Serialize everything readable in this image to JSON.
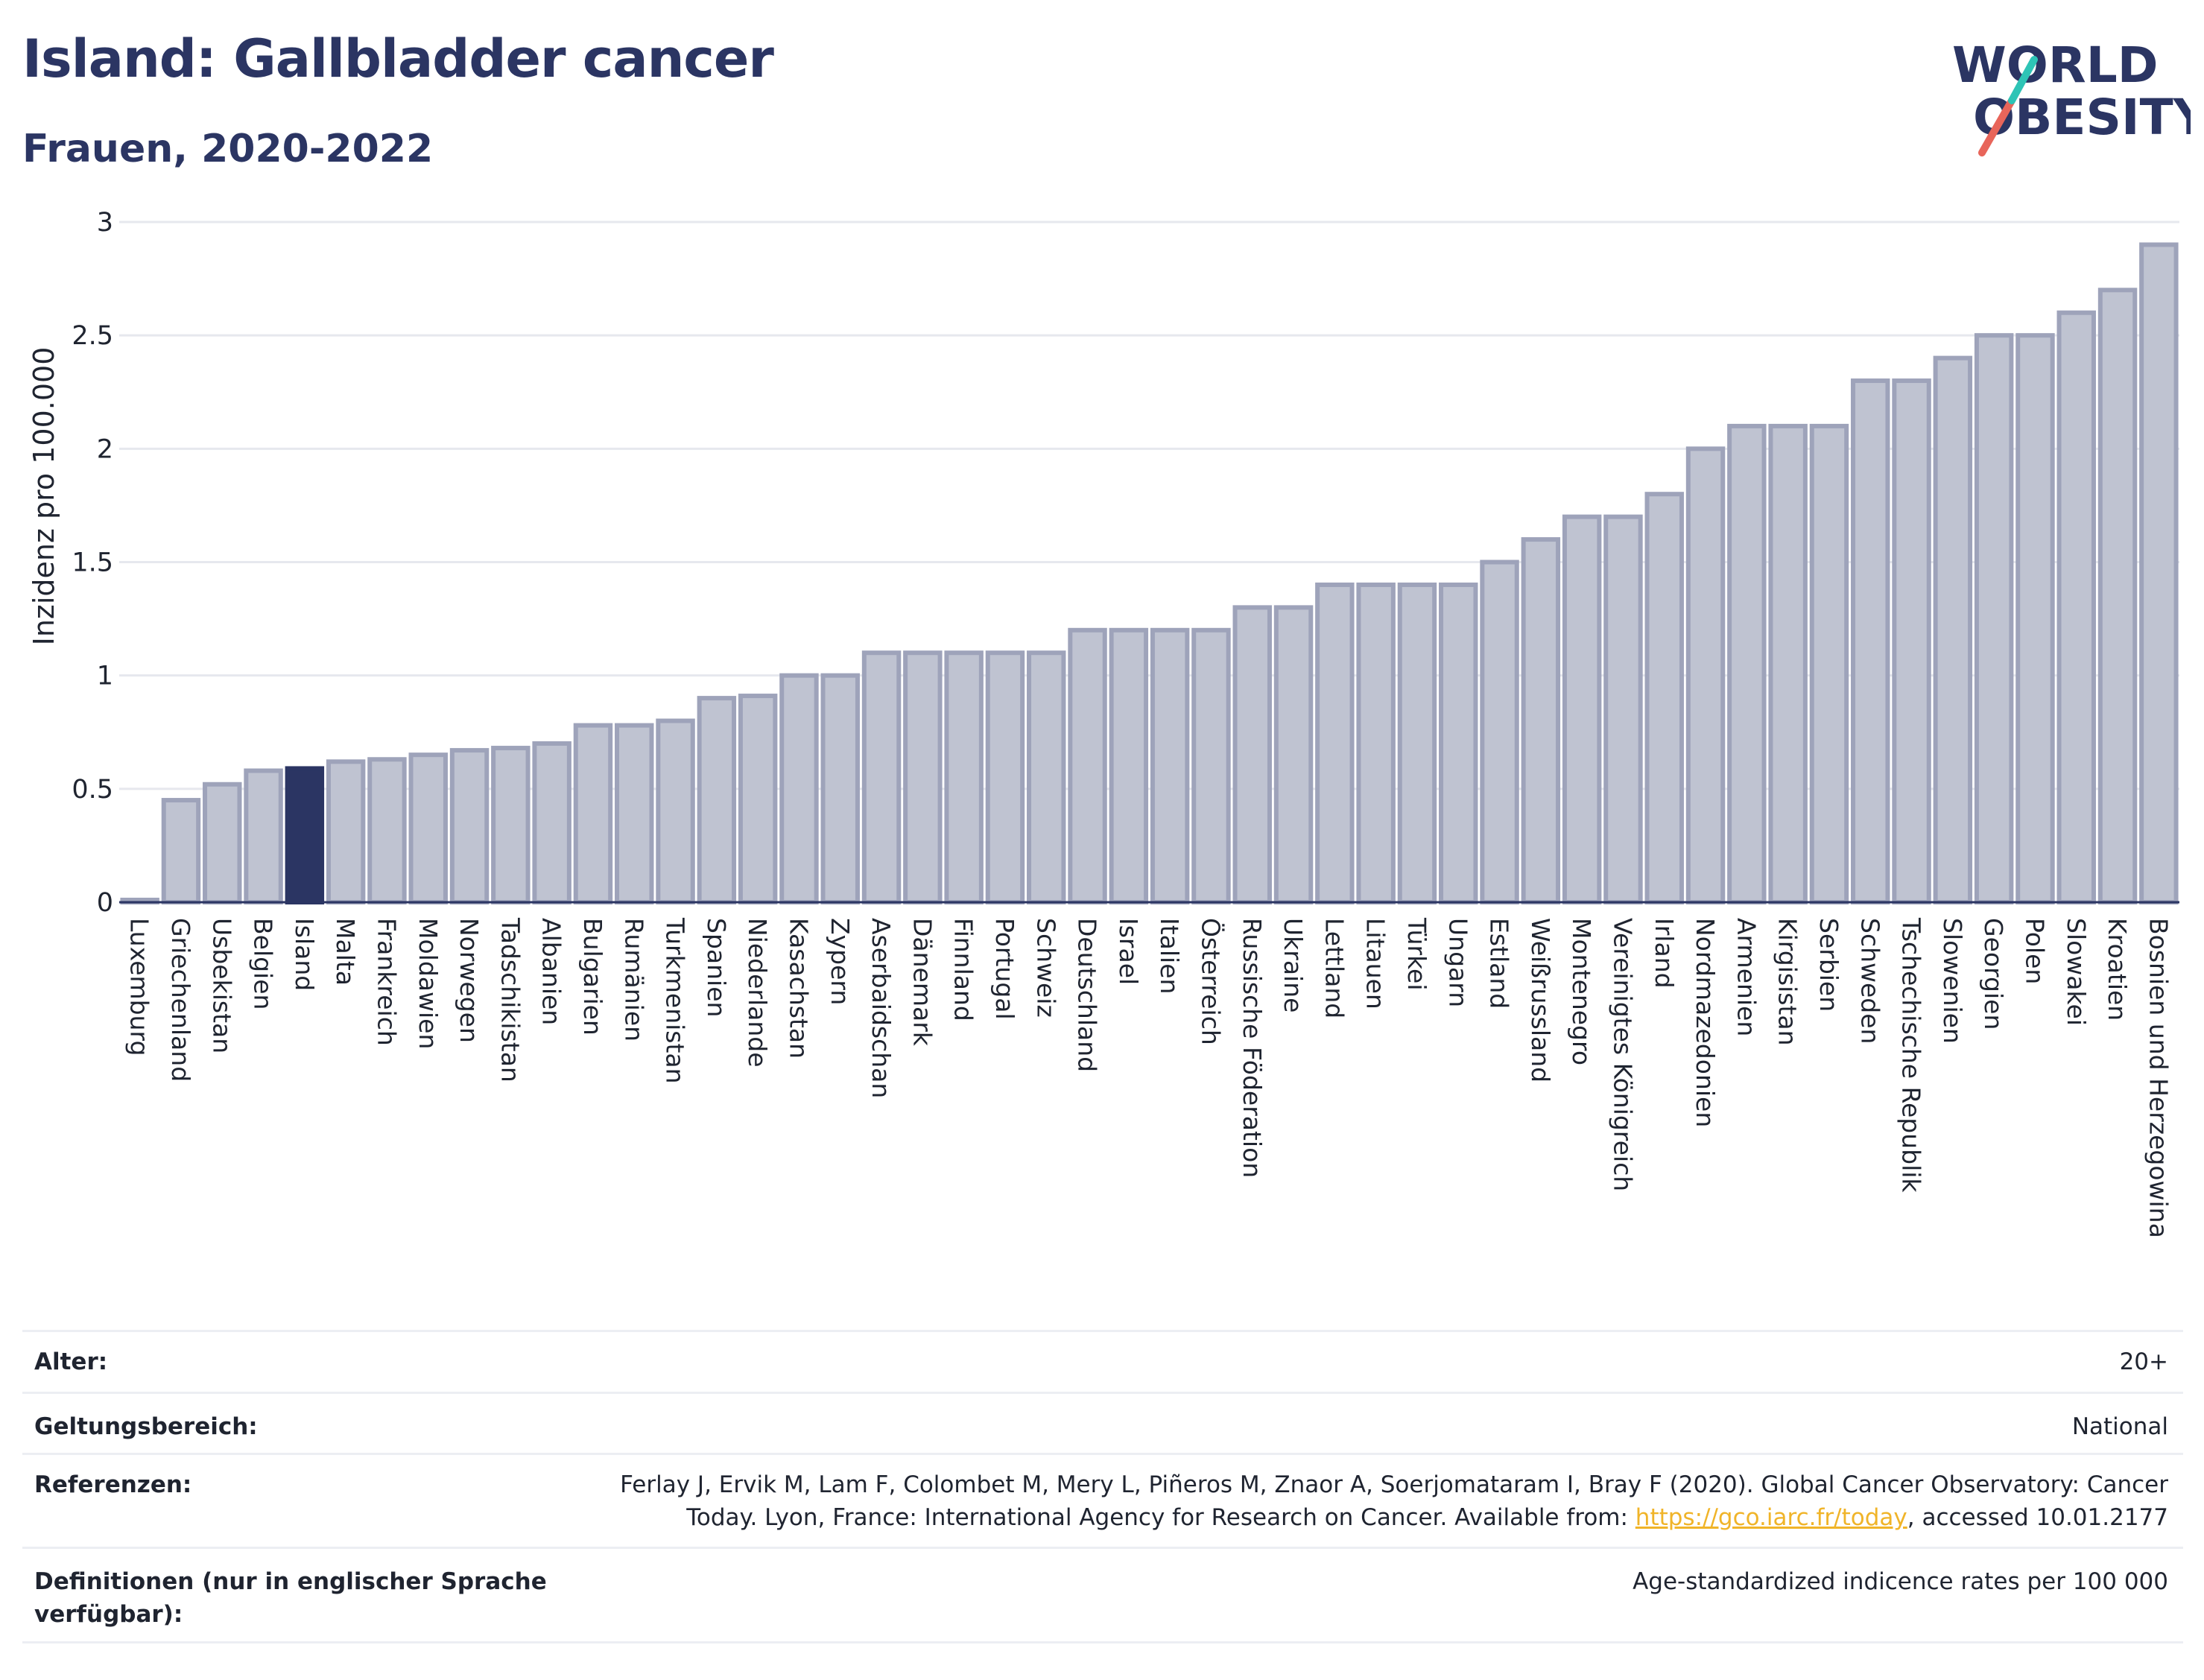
{
  "header": {
    "title": "Island: Gallbladder cancer",
    "subtitle": "Frauen, 2020-2022",
    "logo_line1": "WORLD",
    "logo_line2": "OBESITY"
  },
  "colors": {
    "highlight": "#2b3563",
    "bar_fill": "#bfc3d1",
    "bar_stroke": "#9ea3ba",
    "text": "#1f2430",
    "link": "#f0b429"
  },
  "chart_data": {
    "type": "bar",
    "ylabel": "Inzidenz pro 100.000",
    "ylim": [
      0,
      3
    ],
    "yticks": [
      0,
      0.5,
      1,
      1.5,
      2,
      2.5,
      3
    ],
    "ytick_labels": [
      "0",
      "0.5",
      "1",
      "1.5",
      "2",
      "2.5",
      "3"
    ],
    "grid": true,
    "highlight": "Island",
    "categories": [
      "Luxemburg",
      "Griechenland",
      "Usbekistan",
      "Belgien",
      "Island",
      "Malta",
      "Frankreich",
      "Moldawien",
      "Norwegen",
      "Tadschikistan",
      "Albanien",
      "Bulgarien",
      "Rumänien",
      "Turkmenistan",
      "Spanien",
      "Niederlande",
      "Kasachstan",
      "Zypern",
      "Aserbaidschan",
      "Dänemark",
      "Finnland",
      "Portugal",
      "Schweiz",
      "Deutschland",
      "Israel",
      "Italien",
      "Österreich",
      "Russische Föderation",
      "Ukraine",
      "Lettland",
      "Litauen",
      "Türkei",
      "Ungarn",
      "Estland",
      "Weißrussland",
      "Montenegro",
      "Vereinigtes Königreich",
      "Irland",
      "Nordmazedonien",
      "Armenien",
      "Kirgisistan",
      "Serbien",
      "Schweden",
      "Tschechische Republik",
      "Slowenien",
      "Georgien",
      "Polen",
      "Slowakei",
      "Kroatien",
      "Bosnien und Herzegowina"
    ],
    "values": [
      0.01,
      0.45,
      0.52,
      0.58,
      0.59,
      0.62,
      0.63,
      0.65,
      0.67,
      0.68,
      0.7,
      0.78,
      0.78,
      0.8,
      0.9,
      0.91,
      1.0,
      1.0,
      1.1,
      1.1,
      1.1,
      1.1,
      1.1,
      1.2,
      1.2,
      1.2,
      1.2,
      1.3,
      1.3,
      1.4,
      1.4,
      1.4,
      1.4,
      1.5,
      1.6,
      1.7,
      1.7,
      1.8,
      2.0,
      2.1,
      2.1,
      2.1,
      2.3,
      2.3,
      2.4,
      2.5,
      2.5,
      2.6,
      2.7,
      2.9
    ]
  },
  "meta": {
    "alter_label": "Alter:",
    "alter_value": "20+",
    "scope_label": "Geltungsbereich:",
    "scope_value": "National",
    "ref_label": "Referenzen:",
    "ref_line1": "Ferlay J, Ervik M, Lam F, Colombet M, Mery L, Piñeros M, Znaor A, Soerjomataram I, Bray F (2020). Global Cancer Observatory: Cancer",
    "ref_line2_pre": "Today. Lyon, France: International Agency for Research on Cancer. Available from: ",
    "ref_link": "https://gco.iarc.fr/today",
    "ref_line2_post": ", accessed 10.01.2177",
    "def_label_1": "Definitionen (nur in englischer Sprache",
    "def_label_2": "verfügbar):",
    "def_value": "Age-standardized indicence rates per 100 000"
  }
}
